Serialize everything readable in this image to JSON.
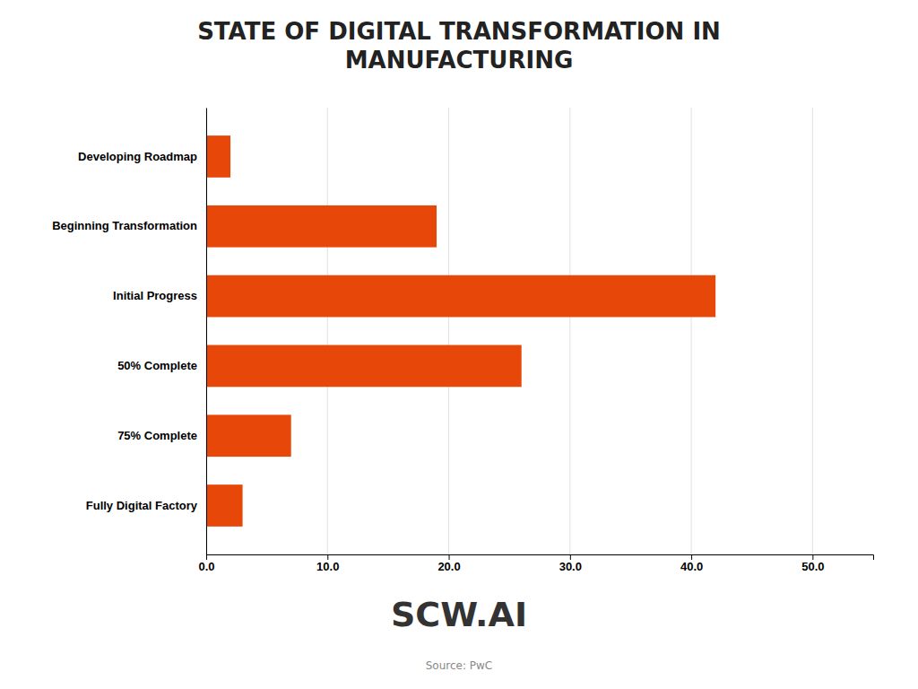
{
  "chart_data": {
    "type": "bar",
    "orientation": "horizontal",
    "title": "STATE OF DIGITAL TRANSFORMATION IN\nMANUFACTURING",
    "categories": [
      "Developing Roadmap",
      "Beginning Transformation",
      "Initial Progress",
      "50% Complete",
      "75% Complete",
      "Fully Digital Factory"
    ],
    "values": [
      2,
      19,
      42,
      26,
      7,
      3
    ],
    "color": "#e8470a",
    "xlim": [
      0,
      55
    ],
    "xticks": [
      {
        "value": 0.0,
        "label": "0.0"
      },
      {
        "value": 10.0,
        "label": "10.0"
      },
      {
        "value": 20.0,
        "label": "20.0"
      },
      {
        "value": 30.0,
        "label": "30.0"
      },
      {
        "value": 40.0,
        "label": "40.0"
      },
      {
        "value": 50.0,
        "label": "50.0"
      }
    ],
    "grid": true,
    "annotations": [
      "SCW.AI",
      "Source: PwC"
    ]
  }
}
